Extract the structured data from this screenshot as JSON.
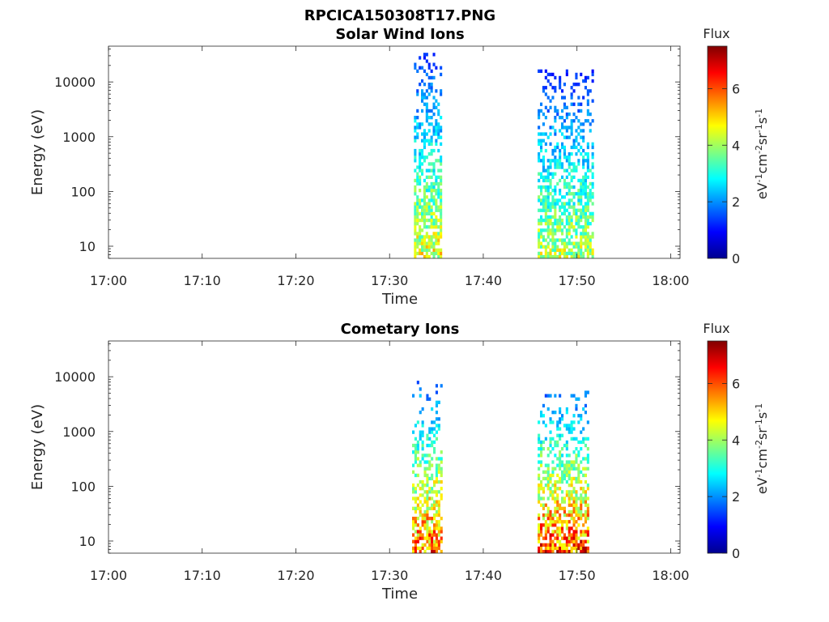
{
  "figure_title": "RPCICA150308T17.PNG",
  "chart_data": [
    {
      "type": "heatmap",
      "title": "Solar Wind Ions",
      "xlabel": "Time",
      "ylabel": "Energy (eV)",
      "x_ticks": [
        "17:00",
        "17:10",
        "17:20",
        "17:30",
        "17:40",
        "17:50",
        "18:00"
      ],
      "xlim_minutes": [
        0,
        61
      ],
      "y_scale": "log",
      "ylim": [
        6,
        45000
      ],
      "y_ticks": [
        10,
        100,
        1000,
        10000
      ],
      "y_tick_labels": [
        "10",
        "100",
        "1000",
        "10000"
      ],
      "colorbar": {
        "title": "Flux",
        "unit_label": "eV-1cm-2sr-1s-1",
        "range": [
          0,
          7.5
        ],
        "ticks": [
          0,
          2,
          4,
          6
        ],
        "colormap": "jet"
      },
      "bursts": [
        {
          "t_start": 32.6,
          "t_end": 35.6,
          "e_min": 6,
          "e_max": 32000,
          "flux_peak": 4.8
        },
        {
          "t_start": 45.8,
          "t_end": 51.7,
          "e_min": 6,
          "e_max": 15000,
          "flux_peak": 4.5
        }
      ]
    },
    {
      "type": "heatmap",
      "title": "Cometary Ions",
      "xlabel": "Time",
      "ylabel": "Energy (eV)",
      "x_ticks": [
        "17:00",
        "17:10",
        "17:20",
        "17:30",
        "17:40",
        "17:50",
        "18:00"
      ],
      "xlim_minutes": [
        0,
        61
      ],
      "y_scale": "log",
      "ylim": [
        6,
        45000
      ],
      "y_ticks": [
        10,
        100,
        1000,
        10000
      ],
      "y_tick_labels": [
        "10",
        "100",
        "1000",
        "10000"
      ],
      "colorbar": {
        "title": "Flux",
        "unit_label": "eV-1cm-2sr-1s-1",
        "range": [
          0,
          7.5
        ],
        "ticks": [
          0,
          2,
          4,
          6
        ],
        "colormap": "jet"
      },
      "bursts": [
        {
          "t_start": 32.4,
          "t_end": 35.6,
          "e_min": 6,
          "e_max": 8000,
          "flux_peak": 6.2
        },
        {
          "t_start": 45.8,
          "t_end": 51.3,
          "e_min": 6,
          "e_max": 5000,
          "flux_peak": 6.5
        }
      ]
    }
  ]
}
